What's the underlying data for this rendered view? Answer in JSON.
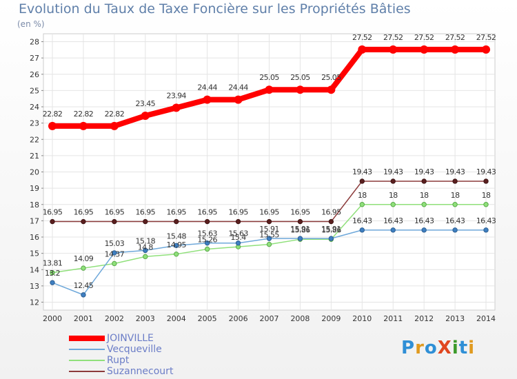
{
  "title": "Evolution du Taux de Taxe Foncière sur les Propriétés Bâties",
  "subtitle": "(en %)",
  "logo": {
    "text": "ProXiti",
    "letters": [
      "P",
      "r",
      "o",
      "X",
      "i",
      "t",
      "i"
    ],
    "colors": [
      "#2f8fd6",
      "#e09a1f",
      "#2f8fd6",
      "#e0461f",
      "#3c9a2b",
      "#2f8fd6",
      "#e09a1f"
    ]
  },
  "chart_data": {
    "type": "line",
    "title": "Evolution du Taux de Taxe Foncière sur les Propriétés Bâties",
    "ylabel": "(en %)",
    "xlabel": "",
    "ylim": [
      12,
      28
    ],
    "yticks": [
      12,
      13,
      14,
      15,
      16,
      17,
      18,
      19,
      20,
      21,
      22,
      23,
      24,
      25,
      26,
      27,
      28
    ],
    "categories": [
      "2000",
      "2001",
      "2002",
      "2003",
      "2004",
      "2005",
      "2006",
      "2007",
      "2008",
      "2009",
      "2010",
      "2011",
      "2012",
      "2013",
      "2014"
    ],
    "grid": true,
    "legend_position": "bottom-left",
    "series": [
      {
        "name": "JOINVILLE",
        "color": "#ff0000",
        "values": [
          22.82,
          22.82,
          22.82,
          23.45,
          23.94,
          24.44,
          24.44,
          25.05,
          25.05,
          25.05,
          27.52,
          27.52,
          27.52,
          27.52,
          27.52
        ],
        "labels": [
          "22.82",
          "22.82",
          "22.82",
          "23.45",
          "23.94",
          "24.44",
          "24.44",
          "25.05",
          "25.05",
          "25.05",
          "27.52",
          "27.52",
          "27.52",
          "27.52",
          "27.52"
        ]
      },
      {
        "name": "Vecqueville",
        "color": "#6ea8da",
        "values": [
          13.2,
          12.45,
          15.03,
          15.18,
          15.48,
          15.63,
          15.63,
          15.91,
          15.91,
          15.91,
          16.43,
          16.43,
          16.43,
          16.43,
          16.43
        ],
        "labels": [
          "13.2",
          "12.45",
          "15.03",
          "15.18",
          "15.48",
          "15.63",
          "15.63",
          "15.91",
          "15.91",
          "15.91",
          "16.43",
          "16.43",
          "16.43",
          "16.43",
          "16.43"
        ]
      },
      {
        "name": "Rupt",
        "color": "#8fe07a",
        "values": [
          13.81,
          14.09,
          14.37,
          14.8,
          14.95,
          15.26,
          15.4,
          15.55,
          15.86,
          15.86,
          18,
          18,
          18,
          18,
          18
        ],
        "labels": [
          "13.81",
          "14.09",
          "14.37",
          "14.8",
          "14.95",
          "15.26",
          "15.4",
          "15.55",
          "15.86",
          "15.86",
          "18",
          "18",
          "18",
          "18",
          "18"
        ]
      },
      {
        "name": "Suzannecourt",
        "color": "#8b3a3a",
        "values": [
          16.95,
          16.95,
          16.95,
          16.95,
          16.95,
          16.95,
          16.95,
          16.95,
          16.95,
          16.95,
          19.43,
          19.43,
          19.43,
          19.43,
          19.43
        ],
        "labels": [
          "16.95",
          "16.95",
          "16.95",
          "16.95",
          "16.95",
          "16.95",
          "16.95",
          "16.95",
          "16.95",
          "16.95",
          "19.43",
          "19.43",
          "19.43",
          "19.43",
          "19.43"
        ]
      }
    ]
  }
}
